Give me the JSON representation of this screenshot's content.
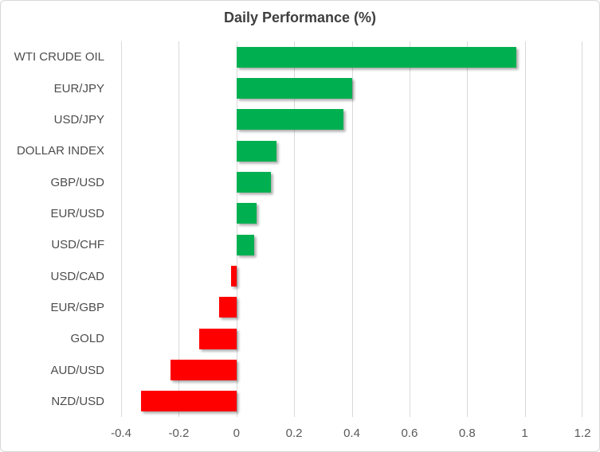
{
  "chart_data": {
    "type": "bar",
    "orientation": "horizontal",
    "title": "Daily Performance (%)",
    "categories": [
      "WTI CRUDE OIL",
      "EUR/JPY",
      "USD/JPY",
      "DOLLAR INDEX",
      "GBP/USD",
      "EUR/USD",
      "USD/CHF",
      "USD/CAD",
      "EUR/GBP",
      "GOLD",
      "AUD/USD",
      "NZD/USD"
    ],
    "values": [
      0.97,
      0.4,
      0.37,
      0.14,
      0.12,
      0.07,
      0.06,
      -0.02,
      -0.06,
      -0.13,
      -0.23,
      -0.33
    ],
    "xlabel": "",
    "ylabel": "",
    "xlim": [
      -0.4,
      1.2
    ],
    "xticks": [
      -0.4,
      -0.2,
      0,
      0.2,
      0.4,
      0.6,
      0.8,
      1,
      1.2
    ],
    "xtick_labels": [
      "-0.4",
      "-0.2",
      "0",
      "0.2",
      "0.4",
      "0.6",
      "0.8",
      "1",
      "1.2"
    ],
    "grid": true,
    "legend": false,
    "colors": {
      "positive": "#00b050",
      "negative": "#ff0000",
      "gridline": "#d9d9d9",
      "title": "#3f3f3f",
      "category_labels": "#4d4d4d",
      "tick_labels": "#595959",
      "border": "#d7d7d7",
      "background": "#ffffff"
    }
  }
}
